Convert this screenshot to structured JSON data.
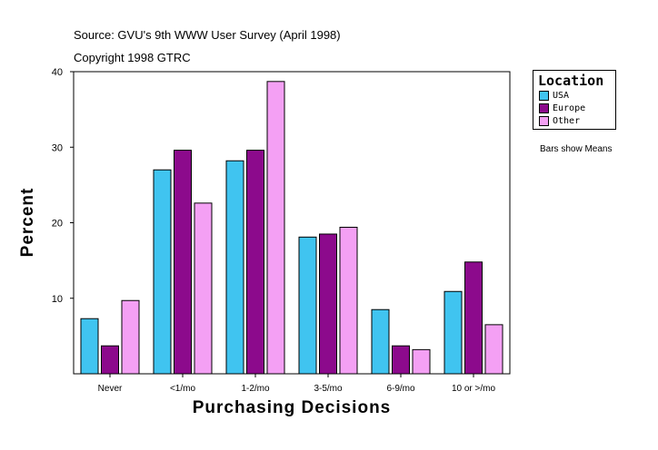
{
  "source": "Source: GVU's 9th WWW User Survey (April 1998)",
  "copyright": "Copyright 1998 GTRC",
  "note": "Bars show Means",
  "chart_data": {
    "type": "bar",
    "xlabel": "Purchasing Decisions",
    "ylabel": "Percent",
    "ylim": [
      0,
      40
    ],
    "yticks": [
      10,
      20,
      30,
      40
    ],
    "categories": [
      "Never",
      "<1/mo",
      "1-2/mo",
      "3-5/mo",
      "6-9/mo",
      "10 or >/mo"
    ],
    "legend_title": "Location",
    "legend_position": "top-right",
    "series": [
      {
        "name": "USA",
        "color": "#40c4f0",
        "values": [
          7.3,
          27.0,
          28.2,
          18.1,
          8.5,
          10.9
        ]
      },
      {
        "name": "Europe",
        "color": "#8c0a8c",
        "values": [
          3.7,
          29.6,
          29.6,
          18.5,
          3.7,
          14.8
        ]
      },
      {
        "name": "Other",
        "color": "#f4a0f4",
        "values": [
          9.7,
          22.6,
          38.7,
          19.4,
          3.2,
          6.5
        ]
      }
    ]
  }
}
